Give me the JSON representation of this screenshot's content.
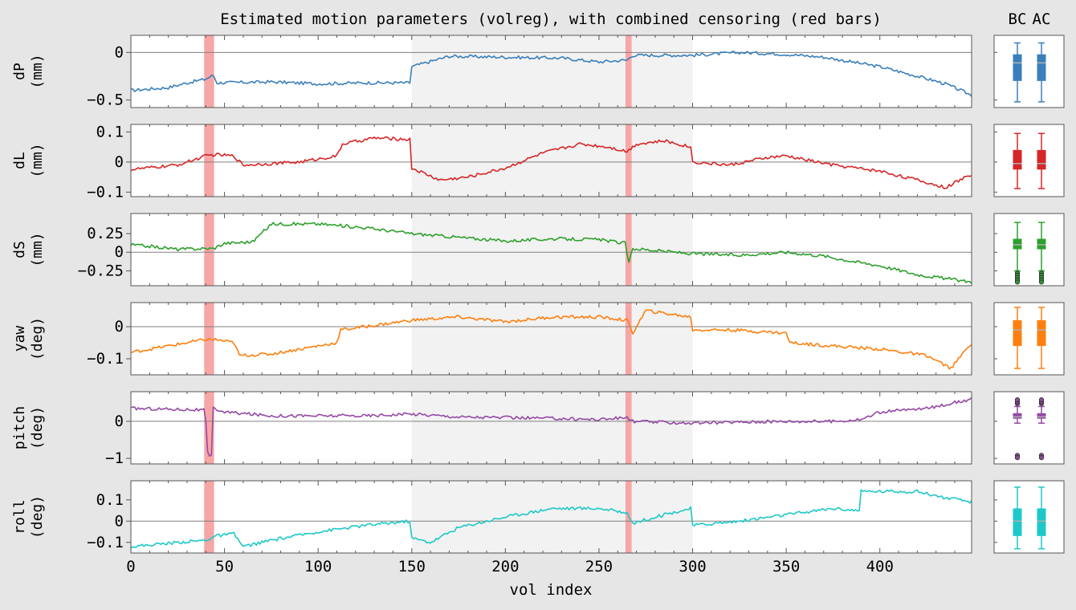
{
  "chart_data": {
    "type": "line",
    "title": "Estimated motion parameters (volreg), with combined censoring (red bars)",
    "xlabel": "vol index",
    "xlim": [
      0,
      449
    ],
    "x_ticks": [
      0,
      50,
      100,
      150,
      200,
      250,
      300,
      350,
      400
    ],
    "boxplot_labels": [
      "BC",
      "AC"
    ],
    "censor_intervals": [
      [
        40,
        44
      ],
      [
        265,
        267
      ]
    ],
    "run_shading": [
      [
        150,
        300
      ]
    ],
    "colors": {
      "dP": "#3a7fbb",
      "dL": "#d62627",
      "dS": "#2ca02c",
      "yaw": "#ff7f0e",
      "pitch": "#9449a6",
      "roll": "#1ec8c8",
      "censor": "#f7a6a6",
      "run_band": "#f2f2f2",
      "zero_line": "#808080"
    },
    "series": [
      {
        "name": "dP",
        "ylabel": "dP\n(mm)",
        "ylim": [
          -0.58,
          0.18
        ],
        "yticks": [
          -0.5,
          0.0
        ],
        "anchors": [
          [
            0,
            -0.4
          ],
          [
            20,
            -0.37
          ],
          [
            30,
            -0.32
          ],
          [
            40,
            -0.28
          ],
          [
            44,
            -0.24
          ],
          [
            46,
            -0.32
          ],
          [
            75,
            -0.31
          ],
          [
            100,
            -0.33
          ],
          [
            125,
            -0.32
          ],
          [
            149,
            -0.32
          ],
          [
            150,
            -0.15
          ],
          [
            170,
            -0.04
          ],
          [
            200,
            -0.05
          ],
          [
            230,
            -0.06
          ],
          [
            250,
            -0.1
          ],
          [
            265,
            -0.08
          ],
          [
            268,
            -0.03
          ],
          [
            300,
            -0.03
          ],
          [
            325,
            0.0
          ],
          [
            350,
            -0.02
          ],
          [
            370,
            -0.05
          ],
          [
            385,
            -0.1
          ],
          [
            400,
            -0.15
          ],
          [
            420,
            -0.25
          ],
          [
            435,
            -0.33
          ],
          [
            449,
            -0.45
          ]
        ],
        "box": {
          "min": -0.52,
          "q1": -0.3,
          "median": -0.11,
          "q3": -0.02,
          "max": 0.1,
          "outliers": []
        }
      },
      {
        "name": "dL",
        "ylabel": "dL\n(mm)",
        "ylim": [
          -0.115,
          0.125
        ],
        "yticks": [
          -0.1,
          0.0,
          0.1
        ],
        "anchors": [
          [
            0,
            -0.025
          ],
          [
            25,
            -0.01
          ],
          [
            40,
            0.02
          ],
          [
            45,
            0.025
          ],
          [
            55,
            0.02
          ],
          [
            60,
            -0.01
          ],
          [
            75,
            -0.005
          ],
          [
            90,
            0.0
          ],
          [
            110,
            0.02
          ],
          [
            113,
            0.06
          ],
          [
            130,
            0.08
          ],
          [
            149,
            0.075
          ],
          [
            150,
            -0.02
          ],
          [
            165,
            -0.06
          ],
          [
            180,
            -0.05
          ],
          [
            200,
            -0.02
          ],
          [
            220,
            0.03
          ],
          [
            240,
            0.06
          ],
          [
            255,
            0.05
          ],
          [
            265,
            0.035
          ],
          [
            270,
            0.06
          ],
          [
            285,
            0.07
          ],
          [
            299,
            0.05
          ],
          [
            300,
            0.0
          ],
          [
            320,
            -0.01
          ],
          [
            340,
            0.015
          ],
          [
            350,
            0.02
          ],
          [
            375,
            -0.01
          ],
          [
            400,
            -0.03
          ],
          [
            420,
            -0.06
          ],
          [
            435,
            -0.085
          ],
          [
            449,
            -0.04
          ]
        ],
        "box": {
          "min": -0.088,
          "q1": -0.025,
          "median": -0.005,
          "q3": 0.04,
          "max": 0.095,
          "outliers": []
        }
      },
      {
        "name": "dS",
        "ylabel": "dS\n(mm)",
        "ylim": [
          -0.45,
          0.52
        ],
        "yticks": [
          -0.25,
          0.0,
          0.25
        ],
        "anchors": [
          [
            0,
            0.1
          ],
          [
            10,
            0.08
          ],
          [
            25,
            0.04
          ],
          [
            40,
            0.05
          ],
          [
            44,
            0.05
          ],
          [
            50,
            0.12
          ],
          [
            65,
            0.14
          ],
          [
            75,
            0.38
          ],
          [
            100,
            0.38
          ],
          [
            125,
            0.33
          ],
          [
            150,
            0.25
          ],
          [
            175,
            0.2
          ],
          [
            200,
            0.15
          ],
          [
            225,
            0.18
          ],
          [
            250,
            0.17
          ],
          [
            264,
            0.12
          ],
          [
            266,
            -0.15
          ],
          [
            268,
            0.05
          ],
          [
            300,
            -0.02
          ],
          [
            325,
            -0.04
          ],
          [
            350,
            0.0
          ],
          [
            370,
            -0.05
          ],
          [
            385,
            -0.12
          ],
          [
            400,
            -0.18
          ],
          [
            420,
            -0.3
          ],
          [
            449,
            -0.4
          ]
        ],
        "box": {
          "min": -0.25,
          "q1": 0.04,
          "median": 0.1,
          "q3": 0.18,
          "max": 0.4,
          "outliers": [
            -0.28,
            -0.31,
            -0.34,
            -0.37,
            -0.4
          ]
        }
      },
      {
        "name": "yaw",
        "ylabel": "yaw\n(deg)",
        "ylim": [
          -0.15,
          0.075
        ],
        "yticks": [
          -0.1,
          0.0
        ],
        "anchors": [
          [
            0,
            -0.08
          ],
          [
            20,
            -0.06
          ],
          [
            40,
            -0.04
          ],
          [
            45,
            -0.04
          ],
          [
            55,
            -0.05
          ],
          [
            58,
            -0.09
          ],
          [
            75,
            -0.085
          ],
          [
            100,
            -0.06
          ],
          [
            110,
            -0.05
          ],
          [
            112,
            -0.01
          ],
          [
            125,
            0.0
          ],
          [
            150,
            0.02
          ],
          [
            175,
            0.03
          ],
          [
            200,
            0.015
          ],
          [
            225,
            0.03
          ],
          [
            250,
            0.03
          ],
          [
            265,
            0.02
          ],
          [
            268,
            -0.02
          ],
          [
            275,
            0.05
          ],
          [
            299,
            0.03
          ],
          [
            300,
            -0.01
          ],
          [
            320,
            -0.01
          ],
          [
            350,
            -0.02
          ],
          [
            352,
            -0.05
          ],
          [
            375,
            -0.06
          ],
          [
            400,
            -0.07
          ],
          [
            425,
            -0.09
          ],
          [
            438,
            -0.13
          ],
          [
            449,
            -0.05
          ]
        ],
        "box": {
          "min": -0.13,
          "q1": -0.06,
          "median": -0.01,
          "q3": 0.02,
          "max": 0.06,
          "outliers": []
        }
      },
      {
        "name": "pitch",
        "ylabel": "pitch\n(deg)",
        "ylim": [
          -1.15,
          0.8
        ],
        "yticks": [
          -1,
          0
        ],
        "anchors": [
          [
            0,
            0.35
          ],
          [
            30,
            0.32
          ],
          [
            39,
            0.3
          ],
          [
            40,
            0.0
          ],
          [
            41,
            -0.85
          ],
          [
            42,
            -0.98
          ],
          [
            43,
            -0.9
          ],
          [
            44,
            0.35
          ],
          [
            50,
            0.25
          ],
          [
            75,
            0.15
          ],
          [
            100,
            0.15
          ],
          [
            125,
            0.15
          ],
          [
            150,
            0.2
          ],
          [
            175,
            0.12
          ],
          [
            200,
            0.1
          ],
          [
            225,
            0.08
          ],
          [
            250,
            0.05
          ],
          [
            265,
            0.1
          ],
          [
            268,
            0.0
          ],
          [
            280,
            -0.02
          ],
          [
            300,
            -0.05
          ],
          [
            325,
            -0.02
          ],
          [
            350,
            0.0
          ],
          [
            375,
            0.0
          ],
          [
            390,
            0.05
          ],
          [
            400,
            0.25
          ],
          [
            425,
            0.35
          ],
          [
            449,
            0.6
          ]
        ],
        "box": {
          "min": -0.05,
          "q1": 0.07,
          "median": 0.12,
          "q3": 0.22,
          "max": 0.4,
          "outliers": [
            0.48,
            0.52,
            0.58,
            -0.92,
            -0.98
          ]
        }
      },
      {
        "name": "roll",
        "ylabel": "roll\n(deg)",
        "ylim": [
          -0.15,
          0.19
        ],
        "yticks": [
          -0.1,
          0.0,
          0.1
        ],
        "anchors": [
          [
            0,
            -0.12
          ],
          [
            25,
            -0.1
          ],
          [
            40,
            -0.09
          ],
          [
            45,
            -0.07
          ],
          [
            55,
            -0.06
          ],
          [
            60,
            -0.12
          ],
          [
            75,
            -0.09
          ],
          [
            100,
            -0.05
          ],
          [
            125,
            -0.02
          ],
          [
            149,
            0.0
          ],
          [
            150,
            -0.08
          ],
          [
            160,
            -0.1
          ],
          [
            175,
            -0.03
          ],
          [
            200,
            0.02
          ],
          [
            225,
            0.06
          ],
          [
            250,
            0.06
          ],
          [
            265,
            0.04
          ],
          [
            268,
            -0.01
          ],
          [
            280,
            0.02
          ],
          [
            299,
            0.06
          ],
          [
            300,
            -0.02
          ],
          [
            325,
            0.0
          ],
          [
            350,
            0.03
          ],
          [
            375,
            0.06
          ],
          [
            389,
            0.05
          ],
          [
            390,
            0.14
          ],
          [
            420,
            0.14
          ],
          [
            435,
            0.11
          ],
          [
            449,
            0.09
          ]
        ],
        "box": {
          "min": -0.13,
          "q1": -0.07,
          "median": 0.0,
          "q3": 0.06,
          "max": 0.16,
          "outliers": []
        }
      }
    ]
  }
}
